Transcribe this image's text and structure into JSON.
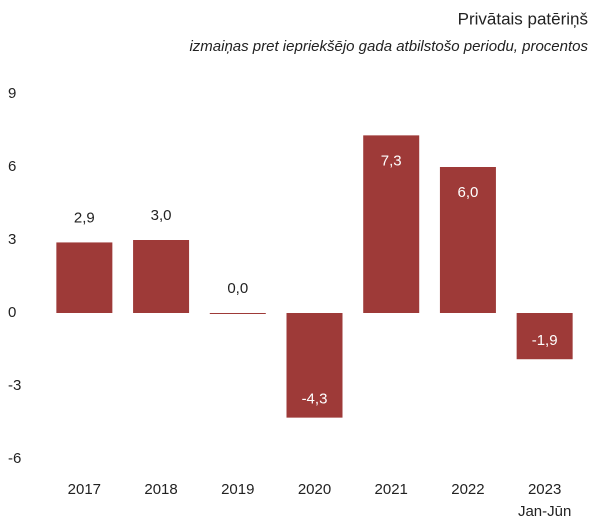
{
  "chart_data": {
    "type": "bar",
    "title": "Privātais patēriņš",
    "subtitle": "izmaiņas pret iepriekšējo gada atbilstošo periodu, procentos",
    "categories": [
      [
        "2017"
      ],
      [
        "2018"
      ],
      [
        "2019"
      ],
      [
        "2020"
      ],
      [
        "2021"
      ],
      [
        "2022"
      ],
      [
        "2023",
        "Jan-Jūn"
      ]
    ],
    "values": [
      2.9,
      3.0,
      0.0,
      -4.3,
      7.3,
      6.0,
      -1.9
    ],
    "value_labels": [
      "2,9",
      "3,0",
      "0,0",
      "-4,3",
      "7,3",
      "6,0",
      "-1,9"
    ],
    "color": "#9e3a38",
    "ylim": [
      -6,
      9
    ],
    "yticks": [
      9,
      6,
      3,
      0,
      -3,
      -6
    ]
  }
}
